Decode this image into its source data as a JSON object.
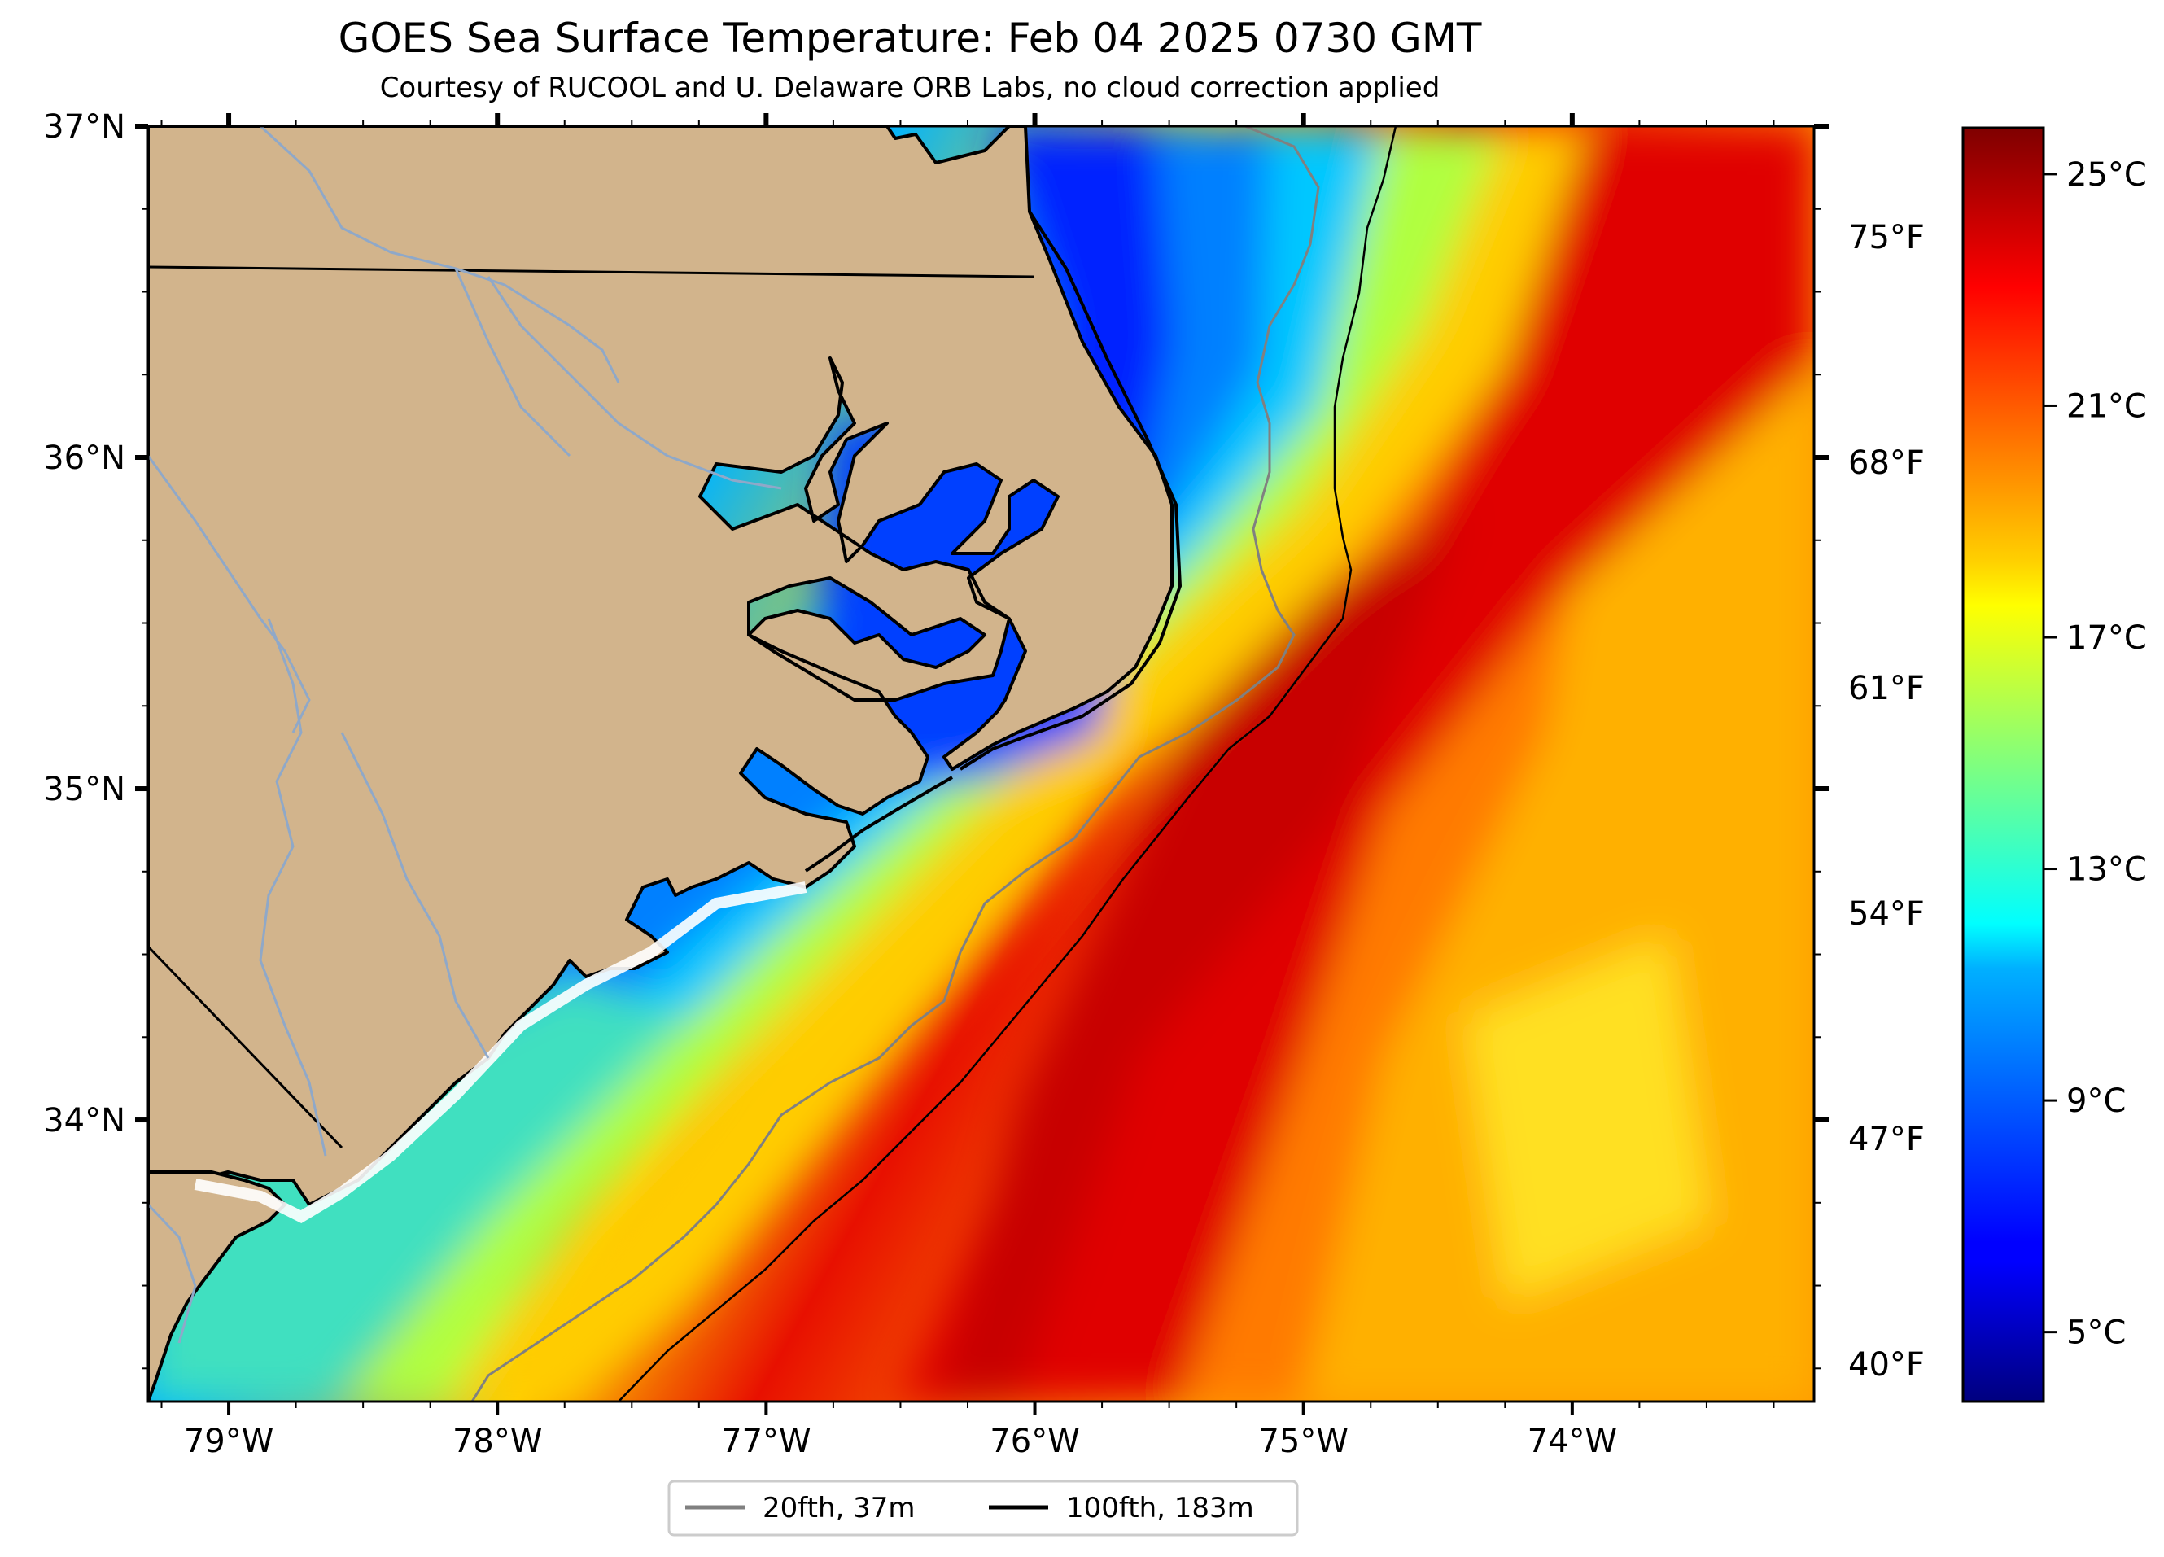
{
  "title": "GOES Sea Surface Temperature: Feb 04 2025 0730 GMT",
  "subtitle": "Courtesy of RUCOOL and U. Delaware ORB Labs, no cloud correction applied",
  "map": {
    "lon_range": [
      -79.3,
      -73.1
    ],
    "lat_range": [
      33.15,
      37.0
    ],
    "lon_ticks": [
      {
        "value": -79,
        "label": "79°W"
      },
      {
        "value": -78,
        "label": "78°W"
      },
      {
        "value": -77,
        "label": "77°W"
      },
      {
        "value": -76,
        "label": "76°W"
      },
      {
        "value": -75,
        "label": "75°W"
      },
      {
        "value": -74,
        "label": "74°W"
      }
    ],
    "lat_ticks": [
      {
        "value": 37,
        "label": "37°N"
      },
      {
        "value": 36,
        "label": "36°N"
      },
      {
        "value": 35,
        "label": "35°N"
      },
      {
        "value": 34,
        "label": "34°N"
      }
    ],
    "fahrenheit_ticks": [
      {
        "value": 75,
        "label": "75°F"
      },
      {
        "value": 68,
        "label": "68°F"
      },
      {
        "value": 61,
        "label": "61°F"
      },
      {
        "value": 54,
        "label": "54°F"
      },
      {
        "value": 47,
        "label": "47°F"
      },
      {
        "value": 40,
        "label": "40°F"
      }
    ],
    "land_color": "#d2b48c",
    "river_color": "#8fa8c8",
    "isobath_20_color": "#808080",
    "isobath_100_color": "#000000"
  },
  "colorbar": {
    "colormap": "jet",
    "range_c": [
      3.8,
      25.8
    ],
    "ticks": [
      {
        "value": 25,
        "label": "25°C"
      },
      {
        "value": 21,
        "label": "21°C"
      },
      {
        "value": 17,
        "label": "17°C"
      },
      {
        "value": 13,
        "label": "13°C"
      },
      {
        "value": 9,
        "label": "9°C"
      },
      {
        "value": 5,
        "label": "5°C"
      }
    ]
  },
  "legend": {
    "items": [
      {
        "label": "20fth, 37m",
        "color": "#808080"
      },
      {
        "label": "100fth, 183m",
        "color": "#000000"
      }
    ]
  }
}
